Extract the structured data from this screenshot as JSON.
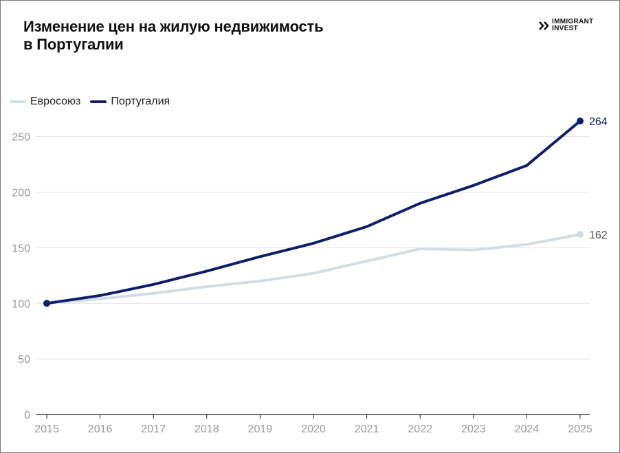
{
  "brand": {
    "line1": "IMMIGRANT",
    "line2": "INVEST",
    "logo_icon": "double-chevron-icon"
  },
  "colors": {
    "eu": "#d3dde5",
    "portugal": "#0f1e6b",
    "grid": "#e3e3e3",
    "axis": "#222222",
    "tick": "#999999"
  },
  "chart_data": {
    "type": "line",
    "title_lines": [
      "Изменение цен на жилую недвижимость",
      "в Португалии"
    ],
    "x": [
      "2015",
      "2016",
      "2017",
      "2018",
      "2019",
      "2020",
      "2021",
      "2022",
      "2023",
      "2024",
      "2025"
    ],
    "yticks": [
      "0",
      "50",
      "100",
      "150",
      "200",
      "250"
    ],
    "ylim": [
      0,
      265
    ],
    "grid": true,
    "legend_position": "top-left",
    "series": [
      {
        "name": "Евросоюз",
        "values": [
          100,
          104,
          109,
          115,
          120,
          127,
          138,
          149,
          148,
          153,
          162
        ],
        "end_label": "162"
      },
      {
        "name": "Португалия",
        "values": [
          100,
          107,
          117,
          129,
          142,
          154,
          169,
          190,
          206,
          224,
          264
        ],
        "end_label": "264"
      }
    ]
  }
}
